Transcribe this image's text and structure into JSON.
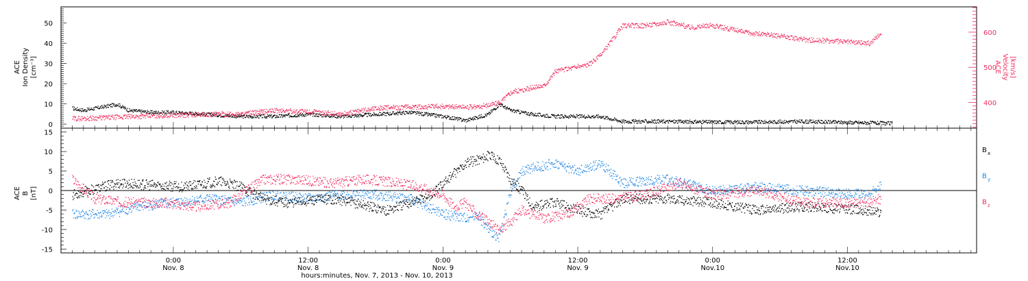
{
  "colors": {
    "black": "#000000",
    "blue": "#1e86e5",
    "red": "#f02c5f"
  },
  "chart_data": [
    {
      "type": "scatter",
      "panel": "top",
      "ylabel_left": [
        "ACE",
        "Ion Density",
        "[cm⁻³]"
      ],
      "ylabel_right": [
        "ACE",
        "Velocity",
        "[km/s]"
      ],
      "ylim": [
        -2,
        58
      ],
      "ylim_right": [
        327,
        672
      ],
      "y_ticks_left": [
        "0",
        "10",
        "20",
        "30",
        "40",
        "50"
      ],
      "y_ticks_right": [
        "400",
        "500",
        "600"
      ],
      "x_ticks": [
        {
          "x": "2013-11-08 00:00",
          "label": "0:00",
          "date": "Nov. 8"
        },
        {
          "x": "2013-11-08 12:00",
          "label": "12:00",
          "date": "Nov. 8"
        },
        {
          "x": "2013-11-09 00:00",
          "label": "0:00",
          "date": "Nov. 9"
        },
        {
          "x": "2013-11-09 12:00",
          "label": "12:00",
          "date": "Nov. 9"
        },
        {
          "x": "2013-11-10 00:00",
          "label": "0:00",
          "date": "Nov.10"
        },
        {
          "x": "2013-11-10 12:00",
          "label": "12:00",
          "date": "Nov.10"
        }
      ],
      "series": [
        {
          "color": "#000000",
          "points": [
            [
              "2013-11-07 15:00",
              8
            ],
            [
              "2013-11-07 16:00",
              7
            ],
            [
              "2013-11-07 18:00",
              9
            ],
            [
              "2013-11-07 19:00",
              10
            ],
            [
              "2013-11-07 20:00",
              7
            ],
            [
              "2013-11-07 22:00",
              6
            ],
            [
              "2013-11-08 00:00",
              6
            ],
            [
              "2013-11-08 03:00",
              5
            ],
            [
              "2013-11-08 06:00",
              4
            ],
            [
              "2013-11-08 09:00",
              4
            ],
            [
              "2013-11-08 12:00",
              5
            ],
            [
              "2013-11-08 15:00",
              4
            ],
            [
              "2013-11-08 18:00",
              5
            ],
            [
              "2013-11-08 21:00",
              6
            ],
            [
              "2013-11-09 00:00",
              4
            ],
            [
              "2013-11-09 02:00",
              2
            ],
            [
              "2013-11-09 04:00",
              5
            ],
            [
              "2013-11-09 05:00",
              10
            ],
            [
              "2013-11-09 06:00",
              7
            ],
            [
              "2013-11-09 08:00",
              5
            ],
            [
              "2013-11-09 10:00",
              4
            ],
            [
              "2013-11-09 12:00",
              4
            ],
            [
              "2013-11-09 14:00",
              4
            ],
            [
              "2013-11-09 16:00",
              1.5
            ],
            [
              "2013-11-09 20:00",
              1.5
            ],
            [
              "2013-11-10 00:00",
              1.2
            ],
            [
              "2013-11-10 04:00",
              1.2
            ],
            [
              "2013-11-10 08:00",
              1.5
            ],
            [
              "2013-11-10 14:00",
              0.8
            ],
            [
              "2013-11-10 16:00",
              0.5
            ]
          ]
        },
        {
          "color": "#f02c5f",
          "axis": "right",
          "points": [
            [
              "2013-11-07 15:00",
              355
            ],
            [
              "2013-11-07 18:00",
              358
            ],
            [
              "2013-11-07 21:00",
              362
            ],
            [
              "2013-11-08 00:00",
              365
            ],
            [
              "2013-11-08 03:00",
              367
            ],
            [
              "2013-11-08 06:00",
              368
            ],
            [
              "2013-11-08 09:00",
              378
            ],
            [
              "2013-11-08 12:00",
              375
            ],
            [
              "2013-11-08 15:00",
              368
            ],
            [
              "2013-11-08 18:00",
              385
            ],
            [
              "2013-11-08 21:00",
              388
            ],
            [
              "2013-11-09 00:00",
              390
            ],
            [
              "2013-11-09 03:00",
              388
            ],
            [
              "2013-11-09 05:00",
              400
            ],
            [
              "2013-11-09 06:00",
              430
            ],
            [
              "2013-11-09 09:00",
              450
            ],
            [
              "2013-11-09 10:00",
              490
            ],
            [
              "2013-11-09 13:00",
              510
            ],
            [
              "2013-11-09 14:00",
              535
            ],
            [
              "2013-11-09 16:00",
              620
            ],
            [
              "2013-11-09 18:00",
              620
            ],
            [
              "2013-11-09 20:00",
              630
            ],
            [
              "2013-11-09 22:00",
              615
            ],
            [
              "2013-11-10 00:00",
              620
            ],
            [
              "2013-11-10 03:00",
              600
            ],
            [
              "2013-11-10 06:00",
              590
            ],
            [
              "2013-11-10 08:00",
              580
            ],
            [
              "2013-11-10 14:00",
              570
            ],
            [
              "2013-11-10 15:00",
              600
            ]
          ]
        }
      ]
    },
    {
      "type": "scatter",
      "panel": "bottom",
      "ylabel_left": [
        "ACE",
        "B",
        "[nT]"
      ],
      "ylim": [
        -16,
        16
      ],
      "y_ticks_left": [
        "-15",
        "-10",
        "-5",
        "0",
        "5",
        "10",
        "15"
      ],
      "legend": [
        "B",
        "B",
        "B"
      ],
      "legend_subscripts": [
        "x",
        "y",
        "z"
      ],
      "series": [
        {
          "name": "Bx",
          "color": "#000000",
          "points": [
            [
              "2013-11-07 15:00",
              -1
            ],
            [
              "2013-11-07 19:00",
              2
            ],
            [
              "2013-11-07 22:00",
              1.5
            ],
            [
              "2013-11-08 01:00",
              1
            ],
            [
              "2013-11-08 04:00",
              2.5
            ],
            [
              "2013-11-08 06:00",
              1
            ],
            [
              "2013-11-08 08:00",
              -2
            ],
            [
              "2013-11-08 10:00",
              -3
            ],
            [
              "2013-11-08 14:00",
              -2
            ],
            [
              "2013-11-08 16:00",
              -3
            ],
            [
              "2013-11-08 19:00",
              -5
            ],
            [
              "2013-11-08 21:00",
              -3
            ],
            [
              "2013-11-08 23:00",
              -1
            ],
            [
              "2013-11-09 00:00",
              2
            ],
            [
              "2013-11-09 02:00",
              7
            ],
            [
              "2013-11-09 04:00",
              9
            ],
            [
              "2013-11-09 05:00",
              8
            ],
            [
              "2013-11-09 06:00",
              3
            ],
            [
              "2013-11-09 07:00",
              0
            ],
            [
              "2013-11-09 08:00",
              -4
            ],
            [
              "2013-11-09 10:00",
              -3
            ],
            [
              "2013-11-09 12:00",
              -5
            ],
            [
              "2013-11-09 14:00",
              -6
            ],
            [
              "2013-11-09 16:00",
              -2
            ],
            [
              "2013-11-09 20:00",
              -2
            ],
            [
              "2013-11-10 00:00",
              -3
            ],
            [
              "2013-11-10 04:00",
              -5
            ],
            [
              "2013-11-10 08:00",
              -4
            ],
            [
              "2013-11-10 14:00",
              -5
            ],
            [
              "2013-11-10 15:00",
              -5.5
            ]
          ]
        },
        {
          "name": "By",
          "color": "#1e86e5",
          "points": [
            [
              "2013-11-07 15:00",
              -6
            ],
            [
              "2013-11-07 18:00",
              -6
            ],
            [
              "2013-11-07 21:00",
              -4
            ],
            [
              "2013-11-08 00:00",
              -3
            ],
            [
              "2013-11-08 03:00",
              -2
            ],
            [
              "2013-11-08 06:00",
              -3
            ],
            [
              "2013-11-08 09:00",
              -1
            ],
            [
              "2013-11-08 12:00",
              -2
            ],
            [
              "2013-11-08 15:00",
              -1
            ],
            [
              "2013-11-08 18:00",
              -1
            ],
            [
              "2013-11-08 21:00",
              -2
            ],
            [
              "2013-11-09 00:00",
              -6
            ],
            [
              "2013-11-09 02:00",
              -7
            ],
            [
              "2013-11-09 03:00",
              -6
            ],
            [
              "2013-11-09 04:00",
              -10
            ],
            [
              "2013-11-09 05:00",
              -12
            ],
            [
              "2013-11-09 06:00",
              0
            ],
            [
              "2013-11-09 07:00",
              5
            ],
            [
              "2013-11-09 08:00",
              6
            ],
            [
              "2013-11-09 10:00",
              7
            ],
            [
              "2013-11-09 12:00",
              5
            ],
            [
              "2013-11-09 14:00",
              7
            ],
            [
              "2013-11-09 16:00",
              2
            ],
            [
              "2013-11-09 20:00",
              3
            ],
            [
              "2013-11-10 00:00",
              0
            ],
            [
              "2013-11-10 04:00",
              1
            ],
            [
              "2013-11-10 08:00",
              0
            ],
            [
              "2013-11-10 14:00",
              -1
            ],
            [
              "2013-11-10 15:00",
              2
            ]
          ]
        },
        {
          "name": "Bz",
          "color": "#f02c5f",
          "points": [
            [
              "2013-11-07 15:00",
              3
            ],
            [
              "2013-11-07 17:00",
              -2
            ],
            [
              "2013-11-07 20:00",
              -3
            ],
            [
              "2013-11-07 23:00",
              -3
            ],
            [
              "2013-11-08 02:00",
              -4
            ],
            [
              "2013-11-08 05:00",
              -3
            ],
            [
              "2013-11-08 08:00",
              3
            ],
            [
              "2013-11-08 11:00",
              3
            ],
            [
              "2013-11-08 14:00",
              2
            ],
            [
              "2013-11-08 17:00",
              3
            ],
            [
              "2013-11-08 20:00",
              2
            ],
            [
              "2013-11-08 22:00",
              1
            ],
            [
              "2013-11-09 00:00",
              -1
            ],
            [
              "2013-11-09 01:00",
              -4
            ],
            [
              "2013-11-09 02:00",
              -3
            ],
            [
              "2013-11-09 03:00",
              -6
            ],
            [
              "2013-11-09 04:00",
              -8
            ],
            [
              "2013-11-09 05:00",
              -10
            ],
            [
              "2013-11-09 06:00",
              -8
            ],
            [
              "2013-11-09 07:00",
              -5
            ],
            [
              "2013-11-09 09:00",
              -7
            ],
            [
              "2013-11-09 11:00",
              -6
            ],
            [
              "2013-11-09 13:00",
              -2
            ],
            [
              "2013-11-09 15:00",
              -2
            ],
            [
              "2013-11-09 18:00",
              -1
            ],
            [
              "2013-11-09 21:00",
              2
            ],
            [
              "2013-11-10 00:00",
              -1
            ],
            [
              "2013-11-10 04:00",
              0
            ],
            [
              "2013-11-10 08:00",
              -3
            ],
            [
              "2013-11-10 14:00",
              -3
            ],
            [
              "2013-11-10 15:00",
              -2
            ]
          ]
        }
      ]
    }
  ],
  "footer": {
    "xlabel": "hours:minutes, Nov.  7, 2013 - Nov. 10, 2013"
  }
}
